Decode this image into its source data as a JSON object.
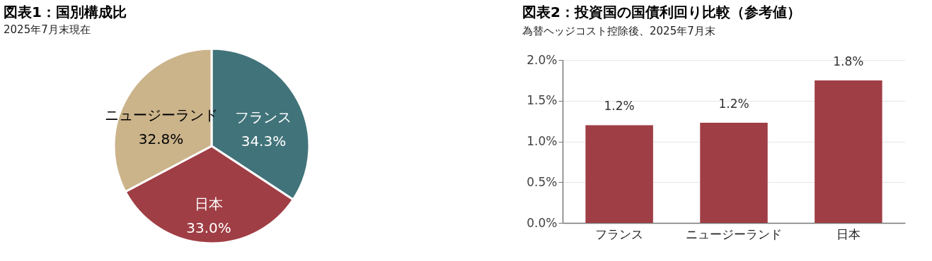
{
  "chart_data": [
    {
      "type": "pie",
      "title": "図表1：国別構成比",
      "subtitle": "2025年7月末現在",
      "categories": [
        "フランス",
        "日本",
        "ニュージーランド"
      ],
      "values": [
        34.3,
        33.0,
        32.8
      ],
      "value_labels": [
        "34.3%",
        "33.0%",
        "32.8%"
      ],
      "colors": [
        "#41737a",
        "#a03e45",
        "#cbb38a"
      ]
    },
    {
      "type": "bar",
      "title": "図表2：投資国の国債利回り比較（参考値）",
      "subtitle": "為替ヘッジコスト控除後、2025年7月末",
      "categories": [
        "フランス",
        "ニュージーランド",
        "日本"
      ],
      "values": [
        1.2,
        1.23,
        1.75
      ],
      "value_labels": [
        "1.2%",
        "1.2%",
        "1.8%"
      ],
      "color": "#a03e45",
      "ylim": [
        0,
        2
      ],
      "yticks": [
        {
          "value": 0,
          "label": "0.0%"
        },
        {
          "value": 0.5,
          "label": "0.5%"
        },
        {
          "value": 1,
          "label": "1.0%"
        },
        {
          "value": 1.5,
          "label": "1.5%"
        },
        {
          "value": 2,
          "label": "2.0%"
        }
      ],
      "grid": "y"
    }
  ]
}
